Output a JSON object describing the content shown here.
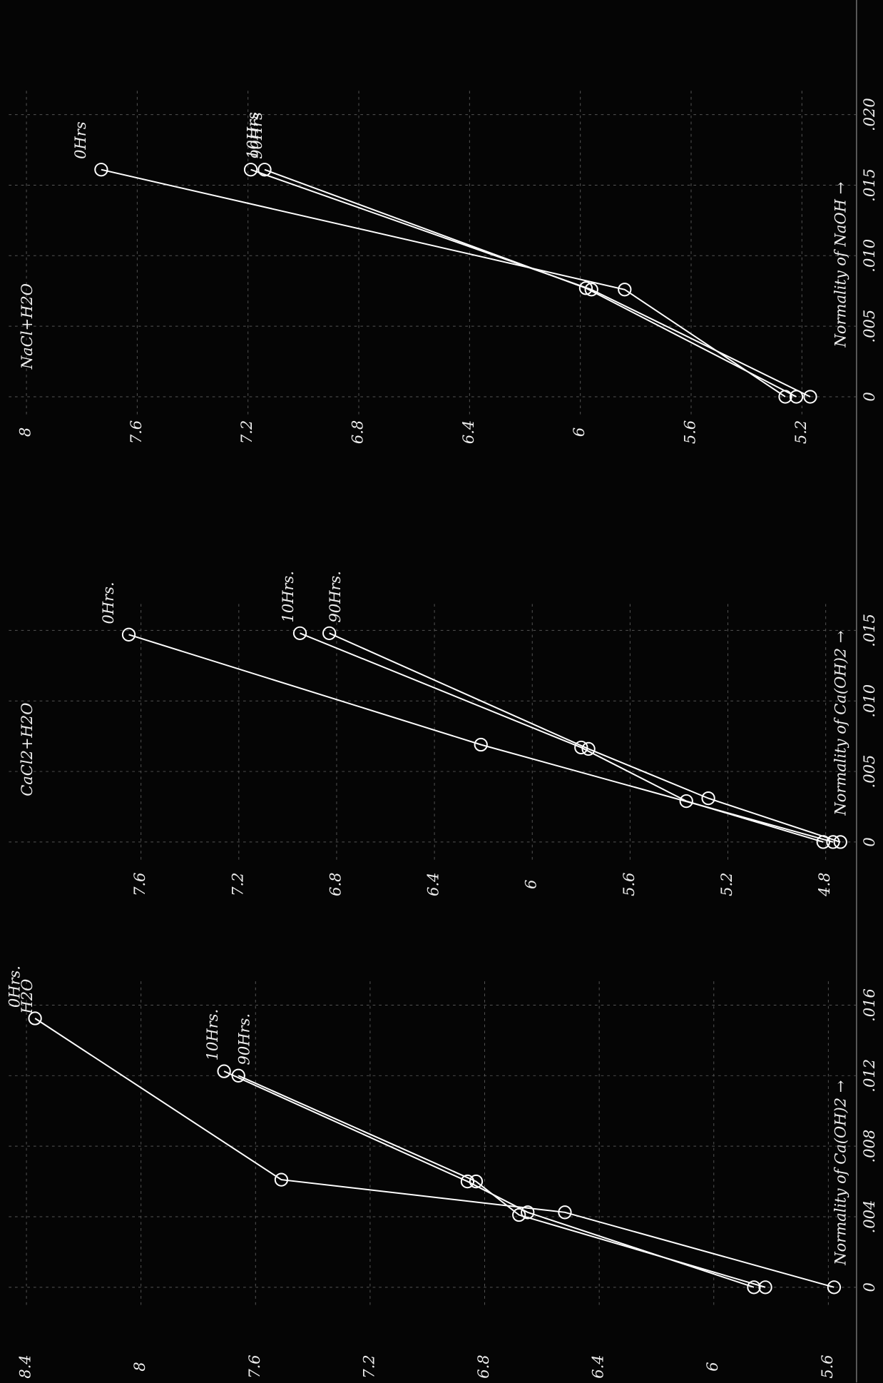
{
  "chart_data": [
    {
      "type": "line",
      "title": "H2O",
      "x_label": "Normality of Ca(OH)2 →",
      "xlim": [
        0,
        0.016
      ],
      "xticks": [
        0,
        {
          "value": 0.004,
          "label": ".004"
        },
        {
          "value": 0.008,
          "label": ".008"
        },
        {
          "value": 0.012,
          "label": ".012"
        },
        {
          "value": 0.016,
          "label": ".016"
        }
      ],
      "ylim": [
        5.6,
        8.4
      ],
      "yticks": [
        5.6,
        6.0,
        6.4,
        6.8,
        7.2,
        7.6,
        8.0,
        8.4
      ],
      "grid": true,
      "series": [
        {
          "name": "0Hrs.",
          "color": "#ffffff",
          "x": [
            0,
            0.00425,
            0.0061,
            0.01525
          ],
          "values": [
            5.58,
            6.52,
            7.51,
            8.37
          ]
        },
        {
          "name": "10Hrs.",
          "color": "#ffffff",
          "x": [
            0,
            0.00425,
            0.006,
            0.01225
          ],
          "values": [
            5.86,
            6.65,
            6.86,
            7.71
          ]
        },
        {
          "name": "90Hrs.",
          "color": "#ffffff",
          "x": [
            0,
            0.0041,
            0.006,
            0.012
          ],
          "values": [
            5.82,
            6.68,
            6.83,
            7.66
          ]
        }
      ]
    },
    {
      "type": "line",
      "title": "CaCl2+H2O",
      "x_label": "Normality of Ca(OH)2 →",
      "xlim": [
        0,
        0.015
      ],
      "xticks": [
        0,
        {
          "value": 0.005,
          "label": ".005"
        },
        {
          "value": 0.01,
          "label": ".010"
        },
        {
          "value": 0.015,
          "label": ".015"
        }
      ],
      "ylim": [
        4.8,
        7.6
      ],
      "yticks": [
        4.8,
        5.2,
        5.6,
        6.0,
        6.4,
        6.8,
        7.2,
        7.6
      ],
      "grid": true,
      "series": [
        {
          "name": "0Hrs.",
          "color": "#ffffff",
          "x": [
            0,
            0.0069,
            0.0147
          ],
          "values": [
            4.77,
            6.21,
            7.65
          ]
        },
        {
          "name": "10Hrs.",
          "color": "#ffffff",
          "x": [
            0,
            0.0029,
            0.0067,
            0.0148
          ],
          "values": [
            4.81,
            5.37,
            5.8,
            6.95
          ]
        },
        {
          "name": "90Hrs.",
          "color": "#ffffff",
          "x": [
            0,
            0.0031,
            0.0066,
            0.0148
          ],
          "values": [
            4.74,
            5.28,
            5.77,
            6.83
          ]
        }
      ]
    },
    {
      "type": "line",
      "title": "NaCl+H2O",
      "x_label": "Normality of NaOH →",
      "xlim": [
        0,
        0.02
      ],
      "xticks": [
        0,
        {
          "value": 0.005,
          "label": ".005"
        },
        {
          "value": 0.01,
          "label": ".010"
        },
        {
          "value": 0.015,
          "label": ".015"
        },
        {
          "value": 0.02,
          "label": ".020"
        }
      ],
      "ylim": [
        5.2,
        8.0
      ],
      "yticks": [
        5.2,
        5.6,
        6.0,
        6.4,
        6.8,
        7.2,
        7.6,
        8.0
      ],
      "grid": true,
      "series": [
        {
          "name": "0Hrs",
          "color": "#ffffff",
          "x": [
            0,
            0.0076,
            0.0161
          ],
          "values": [
            5.26,
            5.84,
            7.73
          ]
        },
        {
          "name": "10Hrs",
          "color": "#ffffff",
          "x": [
            0,
            0.0077,
            0.0161
          ],
          "values": [
            5.22,
            5.98,
            7.14
          ]
        },
        {
          "name": "90Hrs",
          "color": "#ffffff",
          "x": [
            0,
            0.0076,
            0.0161
          ],
          "values": [
            5.17,
            5.96,
            7.19
          ]
        }
      ]
    }
  ]
}
